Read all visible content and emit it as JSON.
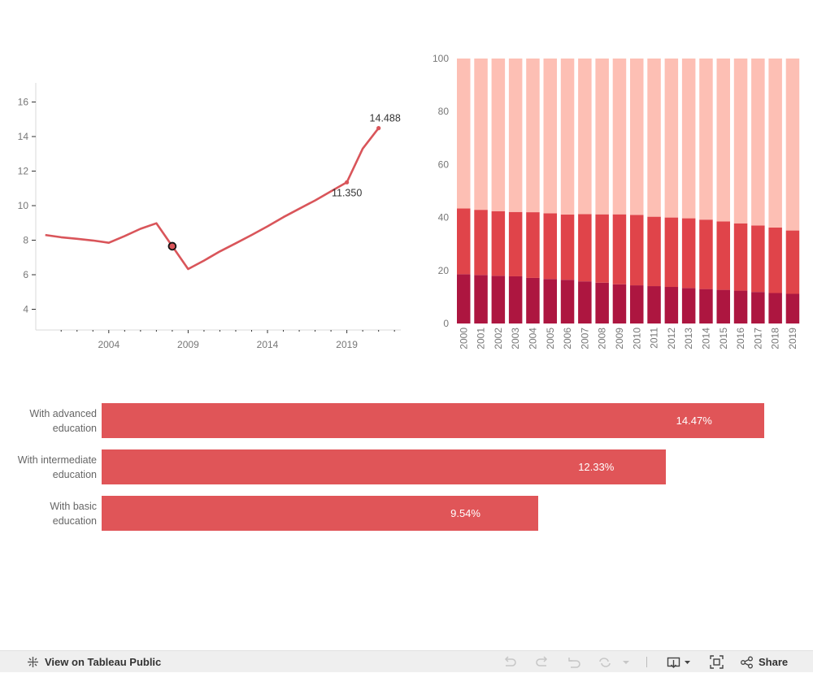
{
  "line_chart": {
    "chart_data": {
      "type": "line",
      "x": [
        2000,
        2001,
        2002,
        2003,
        2004,
        2005,
        2006,
        2007,
        2008,
        2009,
        2010,
        2011,
        2012,
        2013,
        2014,
        2015,
        2016,
        2017,
        2018,
        2019,
        2020,
        2021
      ],
      "y": [
        8.3,
        8.17,
        8.08,
        7.98,
        7.85,
        8.24,
        8.66,
        8.98,
        7.65,
        6.33,
        6.82,
        7.35,
        7.82,
        8.3,
        8.8,
        9.33,
        9.82,
        10.3,
        10.83,
        11.35,
        13.3,
        14.488
      ],
      "yticks": [
        4,
        6,
        8,
        10,
        12,
        14,
        16
      ],
      "xticks": [
        2004,
        2009,
        2014,
        2019
      ],
      "ylim": [
        2.8,
        17.2
      ],
      "xlim": [
        1999.4,
        2022.4
      ],
      "annotations": [
        {
          "x": 2021,
          "y": 14.488,
          "text": "14.488"
        },
        {
          "x": 2019,
          "y": 11.35,
          "text": "11.350"
        }
      ],
      "highlight": {
        "x": 2008,
        "y": 7.65
      },
      "color": "#d9555a"
    }
  },
  "stacked_chart": {
    "chart_data": {
      "type": "bar",
      "stacked": true,
      "categories": [
        "2000",
        "2001",
        "2002",
        "2003",
        "2004",
        "2005",
        "2006",
        "2007",
        "2008",
        "2009",
        "2010",
        "2011",
        "2012",
        "2013",
        "2014",
        "2015",
        "2016",
        "2017",
        "2018",
        "2019"
      ],
      "series": [
        {
          "values": [
            18.6,
            18.3,
            18.0,
            17.8,
            17.2,
            16.8,
            16.5,
            15.9,
            15.4,
            14.8,
            14.4,
            14.1,
            13.8,
            13.4,
            13.0,
            12.7,
            12.4,
            11.9,
            11.5,
            11.2
          ],
          "color": "#ad1640"
        },
        {
          "values": [
            24.8,
            24.6,
            24.4,
            24.3,
            24.8,
            24.8,
            24.6,
            25.4,
            25.8,
            26.4,
            26.6,
            26.2,
            26.2,
            26.3,
            26.2,
            25.8,
            25.4,
            25.1,
            24.7,
            23.9
          ],
          "color": "#e0444a"
        },
        {
          "values": [
            56.6,
            57.1,
            57.6,
            57.9,
            58.0,
            58.4,
            58.9,
            58.7,
            58.8,
            58.8,
            59.0,
            59.7,
            60.0,
            60.3,
            60.8,
            61.5,
            62.2,
            63.0,
            63.8,
            64.9
          ],
          "color": "#fdbfb4"
        }
      ],
      "yticks": [
        0,
        20,
        40,
        60,
        80,
        100
      ],
      "ylim": [
        0,
        100
      ]
    }
  },
  "hbar_chart": {
    "chart_data": {
      "type": "bar",
      "orientation": "horizontal",
      "categories": [
        "With advanced education",
        "With intermediate education",
        "With basic education"
      ],
      "label_lines": [
        [
          "With advanced",
          "education"
        ],
        [
          "With intermediate",
          "education"
        ],
        [
          "With basic",
          "education"
        ]
      ],
      "values": [
        14.47,
        12.33,
        9.54
      ],
      "value_labels": [
        "14.47%",
        "12.33%",
        "9.54%"
      ],
      "xlim": [
        0,
        14.6
      ],
      "color": "#e05558"
    }
  },
  "toolbar": {
    "view_label": "View on Tableau Public",
    "share_label": "Share",
    "icons": [
      "tableau-logo-icon",
      "undo-icon",
      "redo-icon",
      "revert-icon",
      "refresh-icon",
      "chevron-down-icon",
      "download-icon",
      "fullscreen-icon",
      "share-icon"
    ]
  }
}
